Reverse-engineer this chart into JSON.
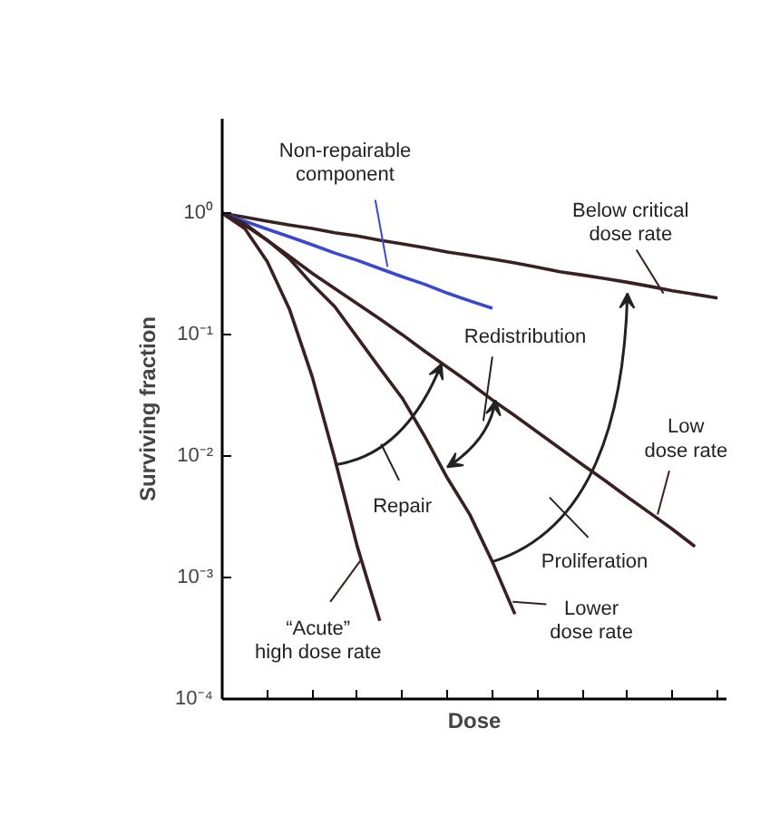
{
  "chart_data": {
    "type": "line",
    "xlabel": "Dose",
    "ylabel": "Surviving fraction",
    "log": "y",
    "grid": false,
    "marker": "none",
    "line_style": "solid",
    "tick_labels": "y",
    "categories": [
      null,
      null,
      null,
      null,
      null,
      null,
      null,
      null,
      null,
      null,
      null,
      null,
      null,
      null,
      null,
      null,
      null,
      null,
      null,
      null,
      null,
      null,
      null
    ],
    "ylim": [
      0.0001,
      6
    ],
    "yticks": [
      {
        "value": 0.0001,
        "label": "10⁻⁴"
      },
      {
        "value": 0.001,
        "label": "10⁻³"
      },
      {
        "value": 0.01,
        "label": "10⁻²"
      },
      {
        "value": 0.1,
        "label": "10⁻¹"
      },
      {
        "value": 1,
        "label": "10⁰"
      }
    ],
    "series": [
      {
        "name": "Below critical\ndose rate",
        "color": "#3a2020",
        "values": [
          1,
          0.93,
          0.86,
          0.8,
          0.75,
          0.69,
          0.65,
          0.6,
          0.56,
          0.52,
          0.48,
          0.45,
          0.42,
          0.39,
          0.36,
          0.33,
          0.31,
          0.29,
          0.27,
          0.25,
          0.23,
          0.215,
          0.2
        ]
      },
      {
        "name": "Non-repairable\ncomponent",
        "color": "#3a48d0",
        "values": [
          1,
          0.86,
          0.74,
          0.64,
          0.55,
          0.47,
          0.41,
          0.35,
          0.3,
          0.26,
          0.22,
          0.19,
          0.165,
          null,
          null,
          null,
          null,
          null,
          null,
          null,
          null,
          null,
          null
        ]
      },
      {
        "name": "Low\ndose rate",
        "color": "#3a2020",
        "values": [
          1,
          0.8,
          0.6,
          0.44,
          0.32,
          0.24,
          0.18,
          0.135,
          0.1,
          0.073,
          0.054,
          0.04,
          0.029,
          0.0215,
          0.0158,
          0.0116,
          0.0085,
          0.0063,
          0.0046,
          0.0034,
          0.0025,
          0.0018,
          null
        ]
      },
      {
        "name": "Lower\ndose rate",
        "color": "#3a2020",
        "values": [
          1,
          0.82,
          0.6,
          0.42,
          0.26,
          0.17,
          0.095,
          0.053,
          0.03,
          0.0145,
          0.0066,
          0.0033,
          0.00135,
          0.0005,
          null,
          null,
          null,
          null,
          null,
          null,
          null,
          null,
          null
        ]
      },
      {
        "name": "“Acute”\nhigh dose rate",
        "color": "#3a2020",
        "values": [
          1,
          0.75,
          0.4,
          0.16,
          0.045,
          0.0095,
          0.0018,
          0.00044,
          null,
          null,
          null,
          null,
          null,
          null,
          null,
          null,
          null,
          null,
          null,
          null,
          null,
          null,
          null
        ]
      }
    ],
    "annotations": [
      "Redistribution",
      "Repair",
      "Proliferation"
    ]
  }
}
